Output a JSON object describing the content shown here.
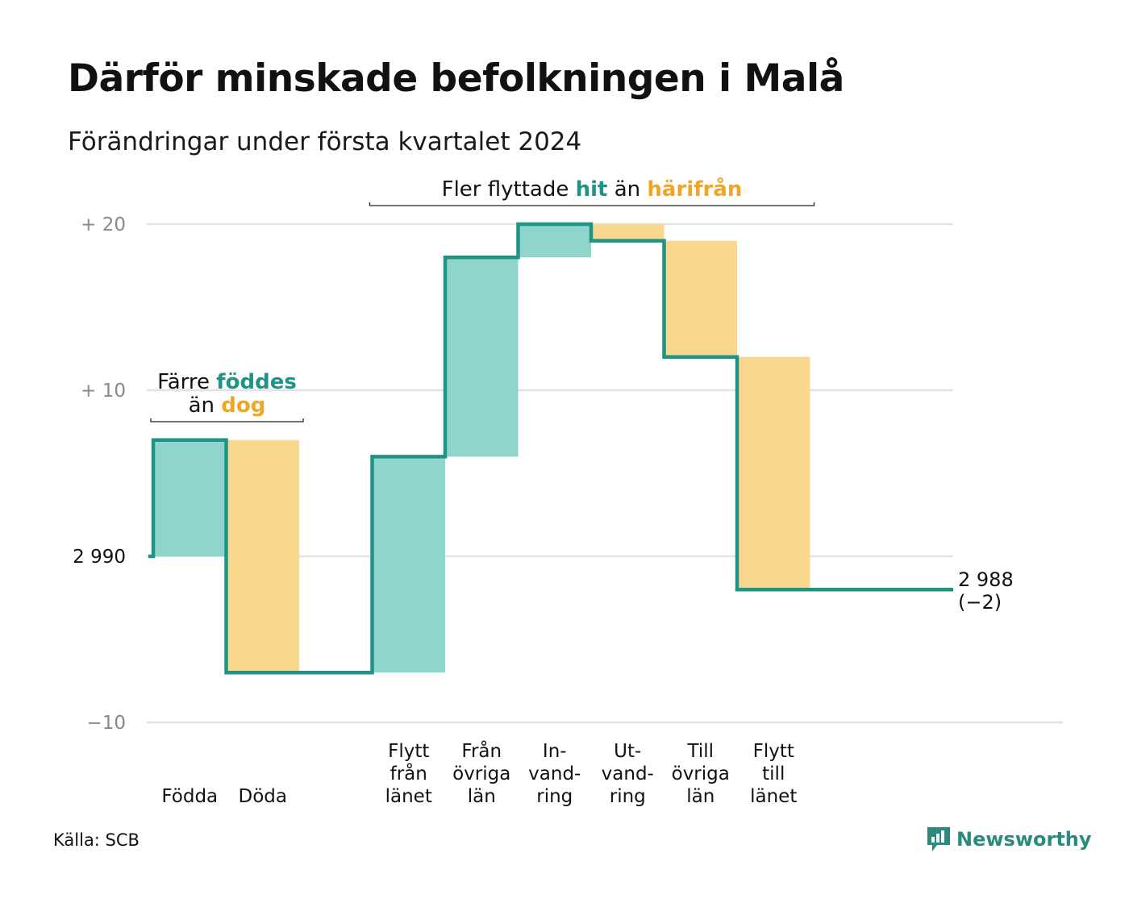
{
  "title": "Därför minskade befolkningen i Malå",
  "subtitle": "Förändringar under första kvartalet 2024",
  "source": "Källa: SCB",
  "brand": "Newsworthy",
  "brand_icon": "bar-chart-speech-bubble-icon",
  "colors": {
    "positive": "#8fd5cb",
    "negative": "#fad78f",
    "line": "#1e9485",
    "accent_teal": "#1e9485",
    "accent_orange": "#f0a526",
    "grid": "#e2e2e2",
    "axis_text": "#888888"
  },
  "chart_data": {
    "type": "waterfall",
    "baseline": 2990,
    "start_value": 2990,
    "end_value": 2988,
    "end_label": [
      "2 988",
      "(−2)"
    ],
    "ylim": [
      -10,
      20
    ],
    "yticks": [
      {
        "value": 20,
        "label": "+  20",
        "style": "muted"
      },
      {
        "value": 10,
        "label": "+  10",
        "style": "muted"
      },
      {
        "value": 0,
        "label": "2  990",
        "style": "dark"
      },
      {
        "value": -10,
        "label": "−10",
        "style": "muted"
      }
    ],
    "steps": [
      {
        "label": [
          "Födda"
        ],
        "delta": 7,
        "kind": "positive"
      },
      {
        "label": [
          "Döda"
        ],
        "delta": -14,
        "kind": "negative"
      },
      {
        "label": [],
        "delta": 0,
        "kind": "gap"
      },
      {
        "label": [
          "Flytt",
          "från",
          "länet"
        ],
        "delta": 13,
        "kind": "positive"
      },
      {
        "label": [
          "Från",
          "övriga",
          "län"
        ],
        "delta": 12,
        "kind": "positive"
      },
      {
        "label": [
          "In-",
          "vand-",
          "ring"
        ],
        "delta": 2,
        "kind": "positive"
      },
      {
        "label": [
          "Ut-",
          "vand-",
          "ring"
        ],
        "delta": -1,
        "kind": "negative"
      },
      {
        "label": [
          "Till",
          "övriga",
          "län"
        ],
        "delta": -7,
        "kind": "negative"
      },
      {
        "label": [
          "Flytt",
          "till",
          "länet"
        ],
        "delta": -14,
        "kind": "negative"
      },
      {
        "label": [],
        "delta": 0,
        "kind": "gap"
      }
    ],
    "annotations": [
      {
        "id": "births",
        "from_step": 0,
        "to_step": 1,
        "lines": [
          [
            {
              "text": "Färre ",
              "style": "plain"
            },
            {
              "text": "föddes",
              "style": "teal"
            }
          ],
          [
            {
              "text": "än ",
              "style": "plain"
            },
            {
              "text": "dog",
              "style": "orange"
            }
          ]
        ]
      },
      {
        "id": "migration",
        "from_step": 3,
        "to_step": 8,
        "lines": [
          [
            {
              "text": "Fler flyttade ",
              "style": "plain"
            },
            {
              "text": "hit",
              "style": "teal"
            },
            {
              "text": " än ",
              "style": "plain"
            },
            {
              "text": "härifrån",
              "style": "orange"
            }
          ]
        ]
      }
    ]
  }
}
